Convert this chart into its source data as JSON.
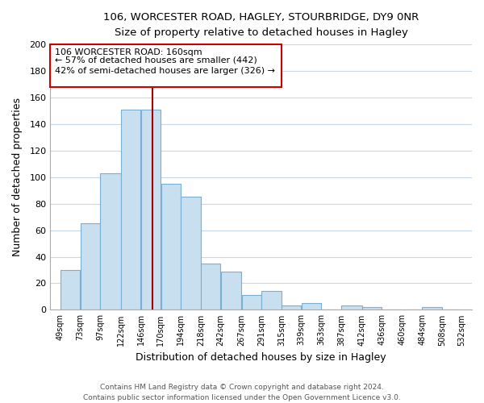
{
  "title": "106, WORCESTER ROAD, HAGLEY, STOURBRIDGE, DY9 0NR",
  "subtitle": "Size of property relative to detached houses in Hagley",
  "xlabel": "Distribution of detached houses by size in Hagley",
  "ylabel": "Number of detached properties",
  "bar_edges": [
    49,
    73,
    97,
    122,
    146,
    170,
    194,
    218,
    242,
    267,
    291,
    315,
    339,
    363,
    387,
    412,
    436,
    460,
    484,
    508,
    532
  ],
  "bar_heights": [
    30,
    65,
    103,
    151,
    151,
    95,
    85,
    35,
    29,
    11,
    14,
    3,
    5,
    0,
    3,
    2,
    0,
    0,
    2,
    0,
    0
  ],
  "bar_color": "#c8dff0",
  "bar_edgecolor": "#7aafd4",
  "property_line_x": 160,
  "property_line_color": "#aa0000",
  "ylim": [
    0,
    200
  ],
  "yticks": [
    0,
    20,
    40,
    60,
    80,
    100,
    120,
    140,
    160,
    180,
    200
  ],
  "tick_labels": [
    "49sqm",
    "73sqm",
    "97sqm",
    "122sqm",
    "146sqm",
    "170sqm",
    "194sqm",
    "218sqm",
    "242sqm",
    "267sqm",
    "291sqm",
    "315sqm",
    "339sqm",
    "363sqm",
    "387sqm",
    "412sqm",
    "436sqm",
    "460sqm",
    "484sqm",
    "508sqm",
    "532sqm"
  ],
  "annotation_text_line1": "106 WORCESTER ROAD: 160sqm",
  "annotation_text_line2": "← 57% of detached houses are smaller (442)",
  "annotation_text_line3": "42% of semi-detached houses are larger (326) →",
  "footer_line1": "Contains HM Land Registry data © Crown copyright and database right 2024.",
  "footer_line2": "Contains public sector information licensed under the Open Government Licence v3.0.",
  "grid_color": "#c8d8e8",
  "background_color": "#ffffff"
}
